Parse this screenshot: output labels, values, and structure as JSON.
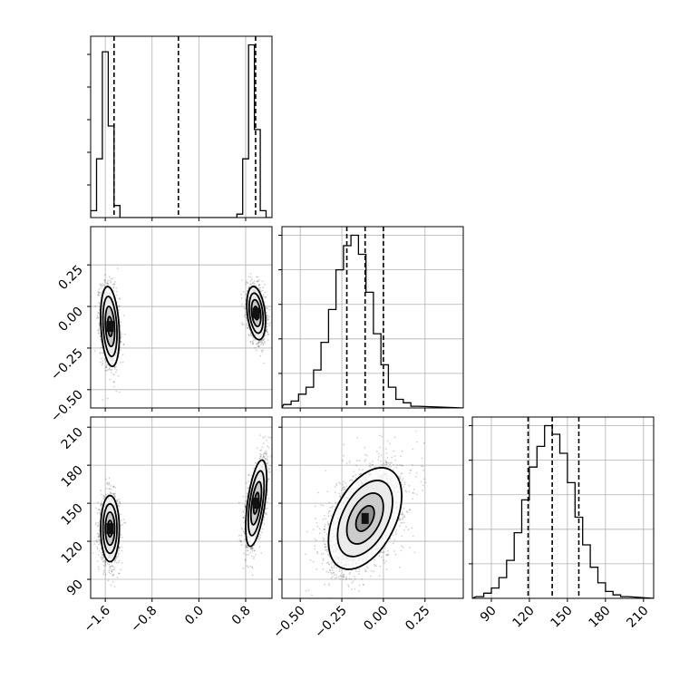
{
  "chart_data": {
    "type": "corner",
    "grid": true,
    "quantile_lines": [
      0.16,
      0.5,
      0.84
    ],
    "dims": [
      {
        "range": [
          -1.85,
          1.25
        ],
        "ticks": [
          -1.6,
          -0.8,
          0.0,
          0.8
        ],
        "tick_labels": [
          "−1.6",
          "−0.8",
          "0.0",
          "0.8"
        ],
        "quantiles": [
          -1.45,
          -0.35,
          0.97
        ]
      },
      {
        "range": [
          -0.61,
          0.48
        ],
        "ticks": [
          -0.5,
          -0.25,
          0.0,
          0.25
        ],
        "tick_labels": [
          "−0.50",
          "−0.25",
          "0.00",
          "0.25"
        ],
        "quantiles": [
          -0.22,
          -0.11,
          0.0
        ]
      },
      {
        "range": [
          75,
          218
        ],
        "ticks": [
          90,
          120,
          150,
          180,
          210
        ],
        "tick_labels": [
          "90",
          "120",
          "150",
          "180",
          "210"
        ],
        "quantiles": [
          119,
          138,
          159
        ]
      }
    ],
    "histograms": [
      {
        "dim": 0,
        "bins": [
          [
            -1.85,
            -1.75,
            0.04
          ],
          [
            -1.75,
            -1.65,
            0.34
          ],
          [
            -1.65,
            -1.55,
            0.96
          ],
          [
            -1.55,
            -1.45,
            0.53
          ],
          [
            -1.45,
            -1.35,
            0.07
          ],
          [
            -1.35,
            -1.25,
            0
          ],
          [
            -1.25,
            0.65,
            0
          ],
          [
            0.65,
            0.75,
            0.02
          ],
          [
            0.75,
            0.85,
            0.34
          ],
          [
            0.85,
            0.95,
            1.0
          ],
          [
            0.95,
            1.05,
            0.51
          ],
          [
            1.05,
            1.15,
            0.04
          ],
          [
            1.15,
            1.25,
            0
          ]
        ]
      },
      {
        "dim": 1,
        "bins": [
          [
            -0.6,
            -0.555,
            0.02
          ],
          [
            -0.555,
            -0.51,
            0.04
          ],
          [
            -0.51,
            -0.465,
            0.08
          ],
          [
            -0.465,
            -0.42,
            0.12
          ],
          [
            -0.42,
            -0.375,
            0.22
          ],
          [
            -0.375,
            -0.33,
            0.38
          ],
          [
            -0.33,
            -0.285,
            0.57
          ],
          [
            -0.285,
            -0.24,
            0.8
          ],
          [
            -0.24,
            -0.195,
            0.94
          ],
          [
            -0.195,
            -0.15,
            1.0
          ],
          [
            -0.15,
            -0.105,
            0.89
          ],
          [
            -0.105,
            -0.06,
            0.67
          ],
          [
            -0.06,
            -0.015,
            0.43
          ],
          [
            -0.015,
            0.03,
            0.25
          ],
          [
            0.03,
            0.075,
            0.12
          ],
          [
            0.075,
            0.12,
            0.05
          ],
          [
            0.12,
            0.165,
            0.03
          ],
          [
            0.165,
            0.21,
            0.01
          ]
        ]
      },
      {
        "dim": 2,
        "bins": [
          [
            78,
            84,
            0.01
          ],
          [
            84,
            90,
            0.03
          ],
          [
            90,
            96,
            0.06
          ],
          [
            96,
            102,
            0.12
          ],
          [
            102,
            108,
            0.22
          ],
          [
            108,
            114,
            0.38
          ],
          [
            114,
            120,
            0.57
          ],
          [
            120,
            126,
            0.76
          ],
          [
            126,
            132,
            0.88
          ],
          [
            132,
            138,
            1.0
          ],
          [
            138,
            144,
            0.95
          ],
          [
            144,
            150,
            0.84
          ],
          [
            150,
            156,
            0.67
          ],
          [
            156,
            162,
            0.47
          ],
          [
            162,
            168,
            0.31
          ],
          [
            168,
            174,
            0.18
          ],
          [
            174,
            180,
            0.09
          ],
          [
            180,
            186,
            0.04
          ],
          [
            186,
            192,
            0.02
          ],
          [
            192,
            198,
            0.01
          ]
        ]
      }
    ],
    "scatters": [
      {
        "x": 0,
        "y": 1,
        "clusters": [
          {
            "cx": -1.52,
            "cy": -0.12,
            "sx": 0.08,
            "sy": 0.12,
            "rho": -0.25,
            "n": 1500
          },
          {
            "cx": 0.98,
            "cy": -0.04,
            "sx": 0.08,
            "sy": 0.08,
            "rho": -0.3,
            "n": 1500
          }
        ]
      },
      {
        "x": 0,
        "y": 2,
        "clusters": [
          {
            "cx": -1.52,
            "cy": 130,
            "sx": 0.08,
            "sy": 13,
            "rho": 0.0,
            "n": 1500
          },
          {
            "cx": 0.98,
            "cy": 150,
            "sx": 0.09,
            "sy": 17,
            "rho": 0.55,
            "n": 1500
          }
        ]
      },
      {
        "x": 1,
        "y": 2,
        "clusters": [
          {
            "cx": -0.11,
            "cy": 138,
            "sx": 0.11,
            "sy": 20,
            "rho": 0.45,
            "n": 3000
          }
        ]
      }
    ],
    "xlabel": "",
    "ylabel": "",
    "title": ""
  }
}
